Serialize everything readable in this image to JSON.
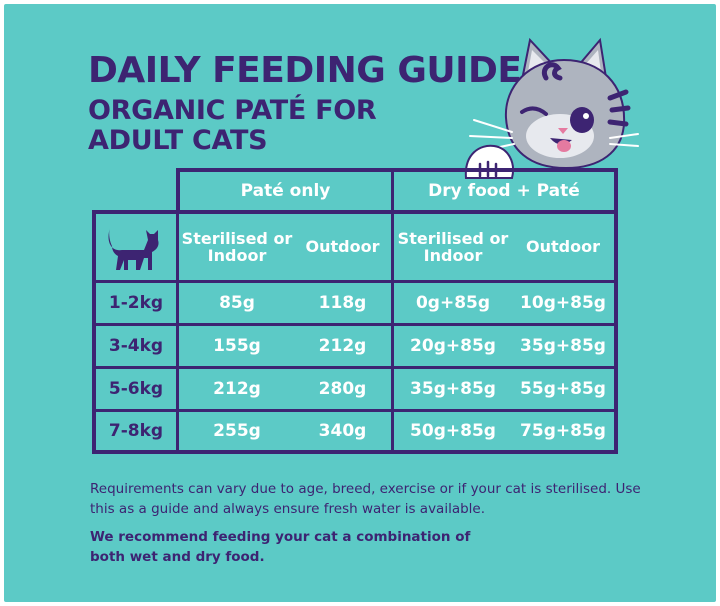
{
  "header": {
    "title": "DAILY FEEDING GUIDE",
    "subtitle": "ORGANIC PATÉ FOR ADULT CATS"
  },
  "table": {
    "groups": [
      "Paté only",
      "Dry food + Paté"
    ],
    "subheaders": [
      "Sterilised or Indoor",
      "Outdoor",
      "Sterilised or Indoor",
      "Outdoor"
    ],
    "rows": [
      {
        "weight": "1-2kg",
        "values": [
          "85g",
          "118g",
          "0g+85g",
          "10g+85g"
        ]
      },
      {
        "weight": "3-4kg",
        "values": [
          "155g",
          "212g",
          "20g+85g",
          "35g+85g"
        ]
      },
      {
        "weight": "5-6kg",
        "values": [
          "212g",
          "280g",
          "35g+85g",
          "55g+85g"
        ]
      },
      {
        "weight": "7-8kg",
        "values": [
          "255g",
          "340g",
          "50g+85g",
          "75g+85g"
        ]
      }
    ]
  },
  "notes": {
    "requirements": "Requirements can vary due to age, breed, exercise or if your cat is sterilised. Use this as a guide and always ensure fresh water is available.",
    "recommendation": "We recommend feeding your cat a combination of both wet and dry food."
  },
  "icons": {
    "table_corner": "cat-silhouette-icon",
    "illustration": "cat-peeking-illustration"
  },
  "colors": {
    "background": "#5ccac6",
    "ink": "#3d2472",
    "text_light": "#ffffff",
    "cat_gray": "#aeb4bf",
    "cat_stripes": "#3d2472",
    "cat_tongue": "#e57aa0"
  }
}
